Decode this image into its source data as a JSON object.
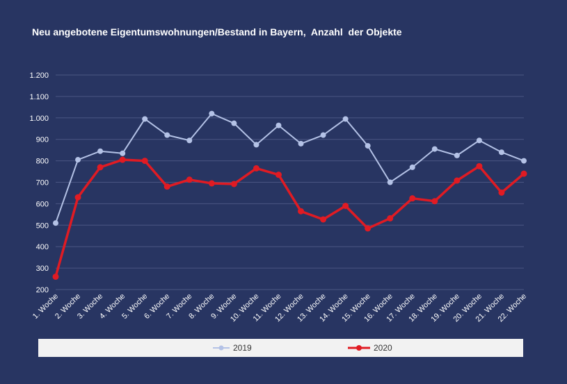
{
  "chart_data": {
    "type": "line",
    "title": "Neu angebotene Eigentumswohnungen/Bestand in Bayern,  Anzahl  der Objekte",
    "categories": [
      "1. Woche",
      "2. Woche",
      "3. Woche",
      "4. Woche",
      "5. Woche",
      "6. Woche",
      "7. Woche",
      "8. Woche",
      "9. Woche",
      "10. Woche",
      "11. Woche",
      "12. Woche",
      "13. Woche",
      "14. Woche",
      "15. Woche",
      "16. Woche",
      "17. Woche",
      "18. Woche",
      "19. Woche",
      "20. Woche",
      "21. Woche",
      "22. Woche"
    ],
    "series": [
      {
        "name": "2019",
        "color": "#b4c2e6",
        "values": [
          510,
          805,
          845,
          835,
          995,
          920,
          895,
          1020,
          975,
          875,
          965,
          880,
          920,
          995,
          870,
          700,
          770,
          855,
          825,
          895,
          840,
          800
        ]
      },
      {
        "name": "2020",
        "color": "#e01b23",
        "values": [
          260,
          630,
          770,
          805,
          800,
          680,
          712,
          695,
          692,
          765,
          735,
          565,
          527,
          590,
          485,
          532,
          625,
          612,
          708,
          775,
          652,
          740
        ]
      }
    ],
    "ylim": [
      200,
      1200
    ],
    "yticks": [
      "200",
      "300",
      "400",
      "500",
      "600",
      "700",
      "800",
      "900",
      "1.000",
      "1.100",
      "1.200"
    ],
    "ytick_values": [
      200,
      300,
      400,
      500,
      600,
      700,
      800,
      900,
      1000,
      1100,
      1200
    ],
    "grid": true,
    "legend_position": "bottom"
  }
}
